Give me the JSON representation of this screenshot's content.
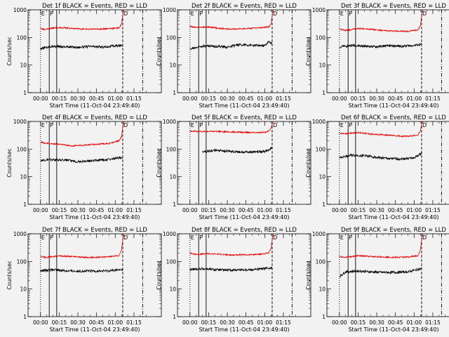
{
  "figure": {
    "colors": {
      "events": "#000000",
      "lld": "#e00000",
      "background": "#f2f2f2"
    }
  },
  "chart_data": [
    {
      "type": "line",
      "title": "Det 1f BLACK = Events, RED = LLD",
      "xlabel": "Start Time (11-Oct-04 23:49:40)",
      "ylabel": "Counts/sec",
      "yscale": "log",
      "ylim": [
        1,
        1000
      ],
      "xlim_min": [
        -10,
        97
      ],
      "x_ticks": [
        "00:00",
        "00:15",
        "00:30",
        "00:45",
        "01:00",
        "01:15"
      ],
      "y_ticks": [
        "1",
        "10",
        "100",
        "1000"
      ],
      "markers": [
        {
          "label": "E",
          "x": 0
        },
        {
          "label": "P",
          "x": 7
        },
        {
          "label": "D",
          "x": 66
        }
      ],
      "vlines": [
        {
          "x": 0,
          "style": "dotted"
        },
        {
          "x": 7,
          "style": "solid"
        },
        {
          "x": 13,
          "style": "solid"
        },
        {
          "x": 66,
          "style": "dashed"
        },
        {
          "x": 82,
          "style": "dashdot"
        }
      ],
      "series": [
        {
          "name": "BLACK = Events",
          "color": "#000000",
          "x": [
            0,
            10,
            20,
            30,
            40,
            50,
            62,
            66
          ],
          "y": [
            40,
            48,
            46,
            44,
            47,
            45,
            50,
            52
          ]
        },
        {
          "name": "RED = LLD",
          "color": "#e00000",
          "x": [
            0,
            3,
            7,
            15,
            25,
            35,
            45,
            55,
            63,
            65,
            66,
            67
          ],
          "y": [
            220,
            190,
            210,
            230,
            215,
            200,
            200,
            210,
            220,
            300,
            700,
            1000
          ]
        }
      ]
    },
    {
      "type": "line",
      "title": "Det 2f BLACK = Events, RED = LLD",
      "xlabel": "Start Time (11-Oct-04 23:49:40)",
      "ylabel": "Counts/sec",
      "yscale": "log",
      "ylim": [
        1,
        1000
      ],
      "xlim_min": [
        -10,
        97
      ],
      "x_ticks": [
        "00:00",
        "00:15",
        "00:30",
        "00:45",
        "01:00",
        "01:15"
      ],
      "y_ticks": [
        "1",
        "10",
        "100",
        "1000"
      ],
      "markers": [
        {
          "label": "E",
          "x": 0
        },
        {
          "label": "P",
          "x": 7
        },
        {
          "label": "D",
          "x": 66
        }
      ],
      "vlines": [
        {
          "x": 0,
          "style": "dotted"
        },
        {
          "x": 7,
          "style": "solid"
        },
        {
          "x": 13,
          "style": "solid"
        },
        {
          "x": 66,
          "style": "dashed"
        },
        {
          "x": 82,
          "style": "dashdot"
        }
      ],
      "series": [
        {
          "name": "BLACK = Events",
          "color": "#000000",
          "x": [
            0,
            10,
            20,
            30,
            40,
            50,
            60,
            63,
            66
          ],
          "y": [
            38,
            50,
            48,
            45,
            55,
            52,
            50,
            70,
            60
          ]
        },
        {
          "name": "RED = LLD",
          "color": "#e00000",
          "x": [
            0,
            5,
            15,
            25,
            35,
            45,
            55,
            63,
            65,
            66,
            67
          ],
          "y": [
            250,
            230,
            240,
            210,
            200,
            210,
            220,
            240,
            300,
            600,
            1000
          ]
        }
      ]
    },
    {
      "type": "line",
      "title": "Det 3f BLACK = Events, RED = LLD",
      "xlabel": "Start Time (11-Oct-04 23:49:40)",
      "ylabel": "Counts/sec",
      "yscale": "log",
      "ylim": [
        1,
        1000
      ],
      "xlim_min": [
        -10,
        97
      ],
      "x_ticks": [
        "00:00",
        "00:15",
        "00:30",
        "00:45",
        "01:00",
        "01:15"
      ],
      "y_ticks": [
        "1",
        "10",
        "100",
        "1000"
      ],
      "markers": [
        {
          "label": "E",
          "x": 0
        },
        {
          "label": "P",
          "x": 7
        },
        {
          "label": "D",
          "x": 66
        }
      ],
      "vlines": [
        {
          "x": 0,
          "style": "dotted"
        },
        {
          "x": 7,
          "style": "solid"
        },
        {
          "x": 13,
          "style": "solid"
        },
        {
          "x": 66,
          "style": "dashed"
        },
        {
          "x": 82,
          "style": "dashdot"
        }
      ],
      "series": [
        {
          "name": "BLACK = Events",
          "color": "#000000",
          "x": [
            0,
            10,
            20,
            30,
            40,
            50,
            60,
            66
          ],
          "y": [
            45,
            52,
            48,
            46,
            50,
            48,
            52,
            55
          ]
        },
        {
          "name": "RED = LLD",
          "color": "#e00000",
          "x": [
            0,
            5,
            15,
            25,
            35,
            45,
            55,
            63,
            65,
            66,
            67
          ],
          "y": [
            200,
            180,
            210,
            200,
            175,
            170,
            165,
            190,
            260,
            600,
            1000
          ]
        }
      ]
    },
    {
      "type": "line",
      "title": "Det 4f BLACK = Events, RED = LLD",
      "xlabel": "Start Time (11-Oct-04 23:49:40)",
      "ylabel": "Counts/sec",
      "yscale": "log",
      "ylim": [
        1,
        1000
      ],
      "xlim_min": [
        -10,
        97
      ],
      "x_ticks": [
        "00:00",
        "00:15",
        "00:30",
        "00:45",
        "01:00",
        "01:15"
      ],
      "y_ticks": [
        "1",
        "10",
        "100",
        "1000"
      ],
      "markers": [
        {
          "label": "E",
          "x": 0
        },
        {
          "label": "P",
          "x": 7
        },
        {
          "label": "D",
          "x": 66
        }
      ],
      "vlines": [
        {
          "x": 0,
          "style": "dotted"
        },
        {
          "x": 7,
          "style": "solid"
        },
        {
          "x": 13,
          "style": "solid"
        },
        {
          "x": 66,
          "style": "dashed"
        },
        {
          "x": 82,
          "style": "dashdot"
        }
      ],
      "series": [
        {
          "name": "BLACK = Events",
          "color": "#000000",
          "x": [
            0,
            10,
            20,
            30,
            40,
            50,
            60,
            66
          ],
          "y": [
            38,
            42,
            40,
            35,
            38,
            40,
            45,
            50
          ]
        },
        {
          "name": "RED = LLD",
          "color": "#e00000",
          "x": [
            0,
            5,
            15,
            25,
            35,
            45,
            55,
            63,
            65,
            66,
            67
          ],
          "y": [
            180,
            160,
            150,
            130,
            140,
            150,
            160,
            200,
            280,
            600,
            1000
          ]
        }
      ]
    },
    {
      "type": "line",
      "title": "Det 5f BLACK = Events, RED = LLD",
      "xlabel": "Start Time (11-Oct-04 23:49:40)",
      "ylabel": "Counts/sec",
      "yscale": "log",
      "ylim": [
        1,
        1000
      ],
      "xlim_min": [
        -10,
        97
      ],
      "x_ticks": [
        "00:00",
        "00:15",
        "00:30",
        "00:45",
        "01:00",
        "01:15"
      ],
      "y_ticks": [
        "1",
        "10",
        "100",
        "1000"
      ],
      "markers": [
        {
          "label": "E",
          "x": 0
        },
        {
          "label": "P",
          "x": 7
        },
        {
          "label": "D",
          "x": 66
        }
      ],
      "vlines": [
        {
          "x": 0,
          "style": "dotted"
        },
        {
          "x": 7,
          "style": "solid"
        },
        {
          "x": 13,
          "style": "solid"
        },
        {
          "x": 66,
          "style": "dashed"
        },
        {
          "x": 82,
          "style": "dashdot"
        }
      ],
      "series": [
        {
          "name": "BLACK = Events",
          "color": "#000000",
          "x": [
            10,
            20,
            30,
            40,
            50,
            60,
            66
          ],
          "y": [
            80,
            90,
            85,
            80,
            78,
            82,
            110
          ]
        },
        {
          "name": "RED = LLD",
          "color": "#e00000",
          "x": [
            0,
            10,
            20,
            30,
            40,
            50,
            60,
            63,
            65,
            66,
            67
          ],
          "y": [
            450,
            430,
            440,
            420,
            410,
            400,
            400,
            450,
            550,
            800,
            1000
          ]
        }
      ]
    },
    {
      "type": "line",
      "title": "Det 6f BLACK = Events, RED = LLD",
      "xlabel": "Start Time (11-Oct-04 23:49:40)",
      "ylabel": "Counts/sec",
      "yscale": "log",
      "ylim": [
        1,
        1000
      ],
      "xlim_min": [
        -10,
        97
      ],
      "x_ticks": [
        "00:00",
        "00:15",
        "00:30",
        "00:45",
        "01:00",
        "01:15"
      ],
      "y_ticks": [
        "1",
        "10",
        "100",
        "1000"
      ],
      "markers": [
        {
          "label": "E",
          "x": 0
        },
        {
          "label": "P",
          "x": 7
        },
        {
          "label": "D",
          "x": 66
        }
      ],
      "vlines": [
        {
          "x": 0,
          "style": "dotted"
        },
        {
          "x": 7,
          "style": "solid"
        },
        {
          "x": 13,
          "style": "solid"
        },
        {
          "x": 66,
          "style": "dashed"
        },
        {
          "x": 82,
          "style": "dashdot"
        }
      ],
      "series": [
        {
          "name": "BLACK = Events",
          "color": "#000000",
          "x": [
            0,
            10,
            20,
            30,
            40,
            50,
            60,
            66
          ],
          "y": [
            50,
            60,
            58,
            50,
            45,
            44,
            48,
            70
          ]
        },
        {
          "name": "RED = LLD",
          "color": "#e00000",
          "x": [
            0,
            5,
            15,
            25,
            35,
            45,
            55,
            63,
            65,
            66,
            67
          ],
          "y": [
            380,
            360,
            400,
            350,
            330,
            300,
            290,
            320,
            450,
            800,
            1000
          ]
        }
      ]
    },
    {
      "type": "line",
      "title": "Det 7f BLACK = Events, RED = LLD",
      "xlabel": "Start Time (11-Oct-04 23:49:40)",
      "ylabel": "Counts/sec",
      "yscale": "log",
      "ylim": [
        1,
        1000
      ],
      "xlim_min": [
        -10,
        97
      ],
      "x_ticks": [
        "00:00",
        "00:15",
        "00:30",
        "00:45",
        "01:00",
        "01:15"
      ],
      "y_ticks": [
        "1",
        "10",
        "100",
        "1000"
      ],
      "markers": [
        {
          "label": "E",
          "x": 0
        },
        {
          "label": "P",
          "x": 7
        },
        {
          "label": "D",
          "x": 66
        }
      ],
      "vlines": [
        {
          "x": 0,
          "style": "dotted"
        },
        {
          "x": 7,
          "style": "solid"
        },
        {
          "x": 13,
          "style": "solid"
        },
        {
          "x": 66,
          "style": "dashed"
        },
        {
          "x": 82,
          "style": "dashdot"
        }
      ],
      "series": [
        {
          "name": "BLACK = Events",
          "color": "#000000",
          "x": [
            0,
            10,
            20,
            30,
            40,
            50,
            60,
            66
          ],
          "y": [
            45,
            50,
            46,
            44,
            45,
            45,
            48,
            50
          ]
        },
        {
          "name": "RED = LLD",
          "color": "#e00000",
          "x": [
            0,
            5,
            15,
            25,
            35,
            45,
            55,
            63,
            65,
            66,
            67
          ],
          "y": [
            150,
            140,
            160,
            150,
            140,
            140,
            150,
            160,
            260,
            600,
            1000
          ]
        }
      ]
    },
    {
      "type": "line",
      "title": "Det 8f BLACK = Events, RED = LLD",
      "xlabel": "Start Time (11-Oct-04 23:49:40)",
      "ylabel": "Counts/sec",
      "yscale": "log",
      "ylim": [
        1,
        1000
      ],
      "xlim_min": [
        -10,
        97
      ],
      "x_ticks": [
        "00:00",
        "00:15",
        "00:30",
        "00:45",
        "01:00",
        "01:15"
      ],
      "y_ticks": [
        "1",
        "10",
        "100",
        "1000"
      ],
      "markers": [
        {
          "label": "E",
          "x": 0
        },
        {
          "label": "P",
          "x": 7
        },
        {
          "label": "D",
          "x": 66
        }
      ],
      "vlines": [
        {
          "x": 0,
          "style": "dotted"
        },
        {
          "x": 7,
          "style": "solid"
        },
        {
          "x": 13,
          "style": "solid"
        },
        {
          "x": 66,
          "style": "dashed"
        },
        {
          "x": 82,
          "style": "dashdot"
        }
      ],
      "series": [
        {
          "name": "BLACK = Events",
          "color": "#000000",
          "x": [
            0,
            10,
            20,
            30,
            40,
            50,
            60,
            66
          ],
          "y": [
            50,
            55,
            50,
            48,
            50,
            50,
            55,
            60
          ]
        },
        {
          "name": "RED = LLD",
          "color": "#e00000",
          "x": [
            0,
            5,
            15,
            25,
            35,
            45,
            55,
            63,
            65,
            66,
            67
          ],
          "y": [
            200,
            180,
            190,
            180,
            170,
            175,
            180,
            200,
            280,
            600,
            1000
          ]
        }
      ]
    },
    {
      "type": "line",
      "title": "Det 9f BLACK = Events, RED = LLD",
      "xlabel": "Start Time (11-Oct-04 23:49:40)",
      "ylabel": "Counts/sec",
      "yscale": "log",
      "ylim": [
        1,
        1000
      ],
      "xlim_min": [
        -10,
        97
      ],
      "x_ticks": [
        "00:00",
        "00:15",
        "00:30",
        "00:45",
        "01:00",
        "01:15"
      ],
      "y_ticks": [
        "1",
        "10",
        "100",
        "1000"
      ],
      "markers": [
        {
          "label": "E",
          "x": 0
        },
        {
          "label": "P",
          "x": 7
        },
        {
          "label": "D",
          "x": 66
        }
      ],
      "vlines": [
        {
          "x": 0,
          "style": "dotted"
        },
        {
          "x": 7,
          "style": "solid"
        },
        {
          "x": 13,
          "style": "solid"
        },
        {
          "x": 66,
          "style": "dashed"
        },
        {
          "x": 82,
          "style": "dashdot"
        }
      ],
      "series": [
        {
          "name": "BLACK = Events",
          "color": "#000000",
          "x": [
            0,
            5,
            15,
            25,
            35,
            45,
            55,
            66
          ],
          "y": [
            28,
            42,
            45,
            42,
            40,
            40,
            42,
            55
          ]
        },
        {
          "name": "RED = LLD",
          "color": "#e00000",
          "x": [
            0,
            5,
            15,
            25,
            35,
            45,
            55,
            63,
            65,
            66,
            67
          ],
          "y": [
            150,
            140,
            160,
            150,
            145,
            140,
            145,
            160,
            260,
            600,
            1000
          ]
        }
      ]
    }
  ]
}
